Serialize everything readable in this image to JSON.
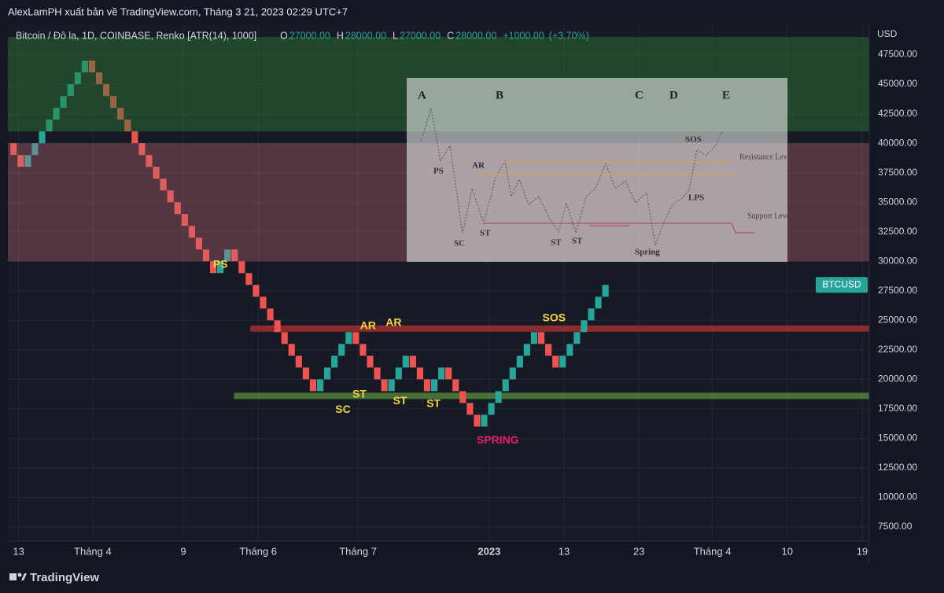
{
  "publisher": "AlexLamPH xuất bản về TradingView.com, Tháng 3 21, 2023 02:29 UTC+7",
  "footer_brand": "TradingView",
  "chart_data": {
    "type": "renko",
    "title": "Bitcoin / Đô la, 1D, COINBASE, Renko [ATR(14), 1000]",
    "ohlc": [
      {
        "name": "O",
        "value": {
          "value": 27000,
          "label": "27000.00"
        }
      },
      {
        "name": "H",
        "value": {
          "value": 28000,
          "label": "28000.00"
        }
      },
      {
        "name": "L",
        "value": {
          "value": 27000,
          "label": "27000.00"
        }
      },
      {
        "name": "C",
        "value": {
          "value": 28000,
          "label": "28000.00"
        }
      }
    ],
    "change": {
      "value": 1000,
      "label": "+1000.00"
    },
    "change_pct": {
      "value": 3.7,
      "label": "(+3.70%)"
    },
    "y_unit": "USD",
    "price_tag": "BTCUSD",
    "brick_size": 1000,
    "up_color": "#26a69a",
    "down_color": "#ef5350",
    "values": [
      39000,
      38000,
      39000,
      40000,
      41000,
      42000,
      43000,
      44000,
      45000,
      46000,
      47000,
      46000,
      45000,
      44000,
      43000,
      42000,
      41000,
      40000,
      39000,
      38000,
      37000,
      36000,
      35000,
      34000,
      33000,
      32000,
      31000,
      30000,
      29000,
      30000,
      31000,
      30000,
      29000,
      28000,
      27000,
      26000,
      25000,
      24000,
      23000,
      22000,
      21000,
      20000,
      19000,
      20000,
      21000,
      22000,
      23000,
      24000,
      23000,
      22000,
      21000,
      20000,
      19000,
      20000,
      21000,
      22000,
      21000,
      20000,
      19000,
      20000,
      21000,
      20000,
      19000,
      18000,
      17000,
      16000,
      17000,
      18000,
      19000,
      20000,
      21000,
      22000,
      23000,
      24000,
      23000,
      22000,
      21000,
      22000,
      23000,
      24000,
      25000,
      26000,
      27000,
      28000
    ],
    "xlim": [
      -0.8,
      120
    ],
    "xticks": [
      {
        "value": 0.7,
        "label": "13"
      },
      {
        "value": 11.1,
        "label": "Tháng 4"
      },
      {
        "value": 23.8,
        "label": "9"
      },
      {
        "value": 34.3,
        "label": "Tháng 6"
      },
      {
        "value": 48.3,
        "label": "Tháng 7"
      },
      {
        "value": 66.7,
        "label": "2023",
        "bold": true
      },
      {
        "value": 77.2,
        "label": "13"
      },
      {
        "value": 87.7,
        "label": "23"
      },
      {
        "value": 98.0,
        "label": "Tháng 4"
      },
      {
        "value": 108.5,
        "label": "10"
      },
      {
        "value": 119.0,
        "label": "19"
      }
    ],
    "ylim": [
      6300,
      50000
    ],
    "yticks": [
      {
        "value": 7500,
        "label": "7500.00"
      },
      {
        "value": 10000,
        "label": "10000.00"
      },
      {
        "value": 12500,
        "label": "12500.00"
      },
      {
        "value": 15000,
        "label": "15000.00"
      },
      {
        "value": 17500,
        "label": "17500.00"
      },
      {
        "value": 20000,
        "label": "20000.00"
      },
      {
        "value": 22500,
        "label": "22500.00"
      },
      {
        "value": 25000,
        "label": "25000.00"
      },
      {
        "value": 27500,
        "label": "27500.00"
      },
      {
        "value": 30000,
        "label": "30000.00"
      },
      {
        "value": 32500,
        "label": "32500.00"
      },
      {
        "value": 35000,
        "label": "35000.00"
      },
      {
        "value": 37500,
        "label": "37500.00"
      },
      {
        "value": 40000,
        "label": "40000.00"
      },
      {
        "value": 42500,
        "label": "42500.00"
      },
      {
        "value": 45000,
        "label": "45000.00"
      },
      {
        "value": 47500,
        "label": "47500.00"
      }
    ],
    "grid": true,
    "zones": [
      {
        "from": 41000,
        "to": 49000,
        "color": "rgba(46,125,50,0.45)"
      },
      {
        "from": 30000,
        "to": 40000,
        "color": "rgba(200,110,120,0.35)"
      }
    ],
    "levels": [
      {
        "value": 24300,
        "start": 33.2,
        "color": "rgba(180,50,50,0.75)"
      },
      {
        "value": 18600,
        "start": 30.9,
        "color": "rgba(90,140,60,0.75)"
      }
    ],
    "annotations": [
      {
        "text": "PS",
        "x": 29,
        "y": 29700,
        "color": "#f5d33f"
      },
      {
        "text": "SC",
        "x": 46.2,
        "y": 17400,
        "color": "#f5d33f"
      },
      {
        "text": "ST",
        "x": 48.5,
        "y": 18700,
        "color": "#f5d33f"
      },
      {
        "text": "AR",
        "x": 49.7,
        "y": 24500,
        "color": "#f5d33f"
      },
      {
        "text": "AR",
        "x": 53.3,
        "y": 24750,
        "color": "#f5d33f"
      },
      {
        "text": "ST",
        "x": 54.2,
        "y": 18150,
        "color": "#f5d33f"
      },
      {
        "text": "ST",
        "x": 58.9,
        "y": 17900,
        "color": "#f5d33f"
      },
      {
        "text": "SPRING",
        "x": 67.9,
        "y": 14800,
        "color": "#e91e63"
      },
      {
        "text": "SOS",
        "x": 75.8,
        "y": 25150,
        "color": "#f5d33f"
      }
    ],
    "inset": {
      "phases": [
        "A",
        "B",
        "C",
        "D",
        "E"
      ],
      "labels": [
        "PS",
        "AR",
        "SC",
        "ST",
        "ST",
        "ST",
        "SOS",
        "LPS",
        "Spring"
      ],
      "resistance": "Resistance Levels",
      "support": "Support Levels"
    }
  }
}
